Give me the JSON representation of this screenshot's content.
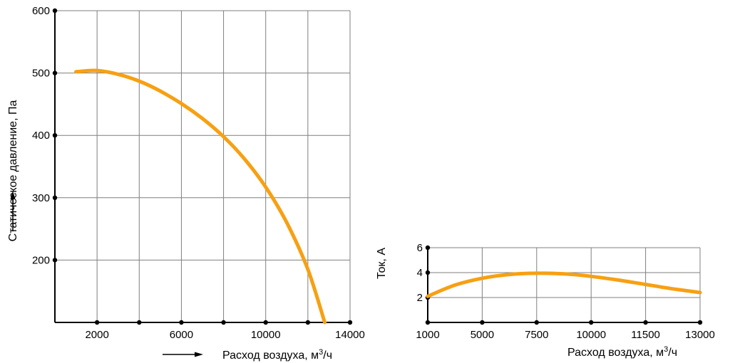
{
  "curve_color": "#f7a013",
  "chart_data": [
    {
      "type": "line",
      "ylabel": "Статическое давление, Па",
      "xlabel_prefix": "Расход воздуха, м",
      "xlabel_sup": "3",
      "xlabel_suffix": "/ч",
      "x_ticks": [
        2000,
        6000,
        10000,
        14000
      ],
      "y_ticks": [
        200,
        300,
        400,
        500,
        600
      ],
      "xlim": [
        0,
        14000
      ],
      "ylim": [
        100,
        600
      ],
      "grid": true,
      "series": [
        {
          "x": [
            1000,
            2000,
            3000,
            4000,
            5000,
            6000,
            7000,
            8000,
            9000,
            10000,
            11000,
            12000,
            12800
          ],
          "y": [
            502,
            504,
            498,
            487,
            471,
            451,
            427,
            398,
            362,
            317,
            260,
            185,
            100
          ]
        }
      ]
    },
    {
      "type": "line",
      "ylabel": "Ток, А",
      "xlabel_prefix": "Расход воздуха, м",
      "xlabel_sup": "3",
      "xlabel_suffix": "/ч",
      "x_ticks": [
        "1000",
        "5000",
        "7500",
        "10000",
        "11500",
        "13000"
      ],
      "y_ticks": [
        2,
        4,
        6
      ],
      "ylim": [
        0,
        6
      ],
      "grid": true,
      "series": [
        {
          "x": [
            0,
            0.5,
            1,
            1.5,
            2,
            2.5,
            3,
            3.5,
            4,
            4.5,
            5
          ],
          "y": [
            2.1,
            3.0,
            3.55,
            3.85,
            3.95,
            3.9,
            3.7,
            3.4,
            3.05,
            2.7,
            2.4
          ]
        }
      ]
    }
  ]
}
